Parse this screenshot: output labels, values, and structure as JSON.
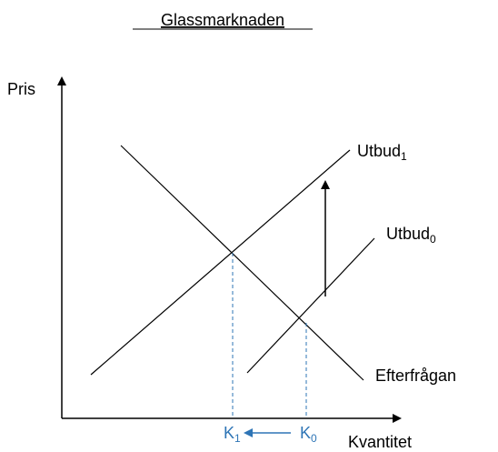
{
  "title": "Glassmarknaden",
  "axes": {
    "y": "Pris",
    "x": "Kvantitet"
  },
  "curves": [
    {
      "label": "Utbud",
      "subscript": "1"
    },
    {
      "label": "Utbud",
      "subscript": "0"
    },
    {
      "label": "Efterfrågan"
    }
  ],
  "quantities": [
    {
      "label": "K",
      "subscript": "1"
    },
    {
      "label": "K",
      "subscript": "0"
    }
  ]
}
